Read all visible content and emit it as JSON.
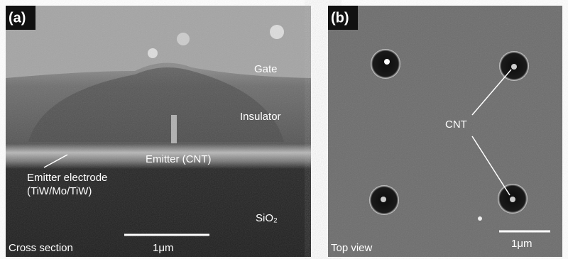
{
  "panel_a": {
    "label": "(a)",
    "gate": "Gate",
    "insulator": "Insulator",
    "emitter": "Emitter (CNT)",
    "electrode_line1": "Emitter electrode",
    "electrode_line2": "(TiW/Mo/TiW)",
    "substrate": "SiO₂",
    "caption": "Cross section",
    "scale": "1μm"
  },
  "panel_b": {
    "label": "(b)",
    "cnt": "CNT",
    "caption": "Top view",
    "scale": "1μm"
  }
}
